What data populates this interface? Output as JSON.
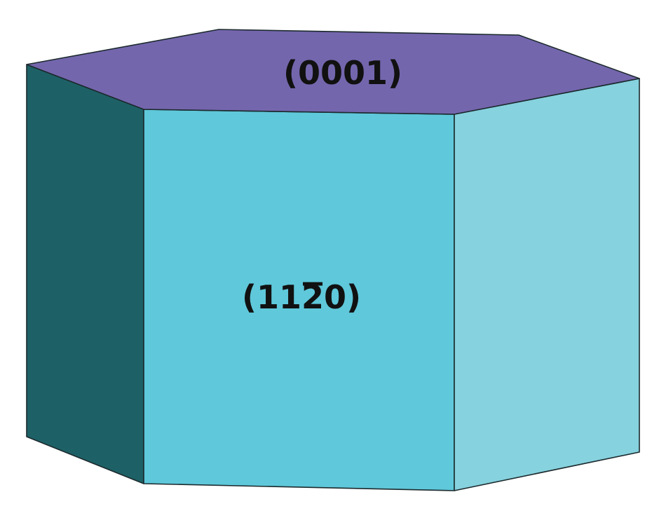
{
  "faces": {
    "top": {
      "label": "(0001)",
      "color": "#7466ad"
    },
    "front": {
      "label_main": "(11",
      "label_bar": "2",
      "label_end": "0)",
      "color": "#5fc8da"
    },
    "left": {
      "color": "#1d6166"
    },
    "right": {
      "color": "#86d2de"
    }
  }
}
